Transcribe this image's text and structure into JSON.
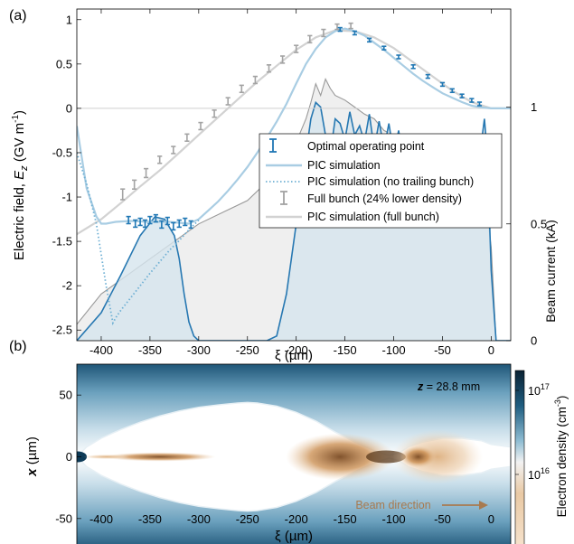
{
  "chart_data": [
    {
      "panel_label": "(a)",
      "type": "line",
      "xlabel": "ξ (µm)",
      "ylabel": "Electric field, E_z (GV m^-1)",
      "ylabel_parts": {
        "pre": "Electric field, ",
        "sym": "E",
        "sub": "z",
        "mid": " (GV m",
        "sup": "-1",
        "post": ")"
      },
      "y2label": "Beam current (kA)",
      "xlim": [
        -425,
        20
      ],
      "ylim": [
        -2.62,
        1.12
      ],
      "y2lim": [
        0,
        1.42
      ],
      "xticks": [
        -400,
        -350,
        -300,
        -250,
        -200,
        -150,
        -100,
        -50,
        0
      ],
      "xtick_labels": [
        "-400",
        "-350",
        "-300",
        "-250",
        "-200",
        "-150",
        "-100",
        "-50",
        "0"
      ],
      "yticks": [
        -2.5,
        -2,
        -1.5,
        -1,
        -0.5,
        0,
        0.5,
        1
      ],
      "ytick_labels": [
        "-2.5",
        "-2",
        "-1.5",
        "-1",
        "-0.5",
        "0",
        "0.5",
        "1"
      ],
      "y2ticks": [
        0,
        0.5,
        1
      ],
      "y2tick_labels": [
        "0",
        "0.5",
        "1"
      ],
      "legend_position": "center-right",
      "colors": {
        "measured": "#1f77b4",
        "pic": "#a9cde3",
        "gray": "#a3a3a3",
        "full_line": "#d2d2d2",
        "current_fill": "#d6e5ee",
        "current_line": "#2778b2",
        "full_current_fill": "#ececec",
        "full_current_line": "#999999"
      },
      "series": [
        {
          "name": "Optimal operating point",
          "style": "errorbar",
          "x": [
            -372,
            -365,
            -360,
            -355,
            -350,
            -344,
            -338,
            -332,
            -326,
            -320,
            -314,
            -308,
            -155,
            -140,
            -125,
            -110,
            -95,
            -80,
            -65,
            -50,
            -40,
            -30,
            -20,
            -12
          ],
          "y": [
            -1.26,
            -1.3,
            -1.28,
            -1.3,
            -1.26,
            -1.24,
            -1.31,
            -1.27,
            -1.33,
            -1.3,
            -1.28,
            -1.31,
            0.89,
            0.85,
            0.77,
            0.68,
            0.58,
            0.47,
            0.36,
            0.27,
            0.2,
            0.14,
            0.09,
            0.05
          ],
          "err": [
            0.04,
            0.04,
            0.04,
            0.04,
            0.04,
            0.04,
            0.04,
            0.04,
            0.04,
            0.04,
            0.04,
            0.04,
            0.02,
            0.02,
            0.02,
            0.02,
            0.02,
            0.02,
            0.02,
            0.02,
            0.02,
            0.02,
            0.02,
            0.02
          ]
        },
        {
          "name": "PIC simulation",
          "style": "solid",
          "x": [
            -425,
            -415,
            -405,
            -400,
            -395,
            -385,
            -370,
            -350,
            -330,
            -310,
            -300,
            -290,
            -280,
            -270,
            -260,
            -250,
            -240,
            -230,
            -220,
            -210,
            -200,
            -190,
            -180,
            -170,
            -160,
            -150,
            -140,
            -130,
            -120,
            -110,
            -100,
            -90,
            -80,
            -70,
            -60,
            -50,
            -40,
            -30,
            -20,
            -10,
            0,
            20
          ],
          "y": [
            -0.2,
            -0.9,
            -1.22,
            -1.3,
            -1.3,
            -1.28,
            -1.27,
            -1.28,
            -1.28,
            -1.3,
            -1.25,
            -1.15,
            -1.05,
            -0.93,
            -0.8,
            -0.66,
            -0.5,
            -0.33,
            -0.15,
            0.05,
            0.28,
            0.5,
            0.67,
            0.8,
            0.87,
            0.9,
            0.87,
            0.82,
            0.74,
            0.66,
            0.57,
            0.48,
            0.39,
            0.31,
            0.24,
            0.17,
            0.12,
            0.07,
            0.03,
            0.01,
            0,
            0
          ]
        },
        {
          "name": "PIC simulation (no trailing bunch)",
          "style": "dotted",
          "x": [
            -425,
            -415,
            -405,
            -395,
            -388,
            -385,
            -380,
            -370,
            -360,
            -350,
            -340,
            -330,
            -320,
            -310,
            -300
          ],
          "y": [
            -0.5,
            -0.85,
            -1.3,
            -2.0,
            -2.42,
            -2.36,
            -2.28,
            -2.14,
            -2.0,
            -1.86,
            -1.73,
            -1.6,
            -1.49,
            -1.37,
            -1.26
          ]
        },
        {
          "name": "Full bunch (24% lower density)",
          "style": "errorbar",
          "x": [
            -378,
            -366,
            -354,
            -340,
            -326,
            -312,
            -298,
            -284,
            -270,
            -256,
            -242,
            -228,
            -214,
            -200,
            -186,
            -172,
            -158,
            -144
          ],
          "y": [
            -0.97,
            -0.86,
            -0.73,
            -0.58,
            -0.47,
            -0.33,
            -0.2,
            -0.06,
            0.08,
            0.22,
            0.32,
            0.45,
            0.55,
            0.67,
            0.78,
            0.85,
            0.92,
            0.93
          ],
          "err": [
            0.06,
            0.05,
            0.05,
            0.04,
            0.04,
            0.04,
            0.04,
            0.04,
            0.04,
            0.04,
            0.04,
            0.04,
            0.04,
            0.04,
            0.04,
            0.04,
            0.03,
            0.03
          ]
        },
        {
          "name": "PIC simulation (full bunch)",
          "style": "solid",
          "x": [
            -425,
            -400,
            -380,
            -360,
            -340,
            -320,
            -300,
            -280,
            -260,
            -240,
            -220,
            -200,
            -180,
            -160,
            -140,
            -120,
            -100,
            -80,
            -60,
            -40,
            -20,
            0,
            20
          ],
          "y": [
            -1.42,
            -1.25,
            -1.07,
            -0.88,
            -0.7,
            -0.5,
            -0.3,
            -0.1,
            0.1,
            0.3,
            0.48,
            0.66,
            0.8,
            0.88,
            0.87,
            0.8,
            0.68,
            0.52,
            0.36,
            0.2,
            0.07,
            0,
            0
          ]
        }
      ],
      "beam_current": [
        {
          "style": "filled",
          "x": [
            -425,
            -400,
            -380,
            -360,
            -345,
            -335,
            -325,
            -320,
            -315,
            -310,
            -305,
            -300,
            -250,
            -230,
            -220,
            -210,
            -200,
            -195,
            -190,
            -185,
            -180,
            -175,
            -170,
            -165,
            -160,
            -155,
            -150,
            -145,
            -140,
            -135,
            -130,
            -125,
            -120,
            -115,
            -110,
            -105,
            -100,
            -95,
            -90,
            -85,
            -80,
            -75,
            -70,
            -65,
            -60,
            -55,
            -50,
            -45,
            -40,
            -35,
            -30,
            -25,
            -20,
            -15,
            -10,
            -7,
            -4,
            0,
            5,
            20
          ],
          "y": [
            0,
            0.12,
            0.28,
            0.45,
            0.53,
            0.52,
            0.45,
            0.35,
            0.2,
            0.08,
            0.02,
            0,
            0,
            0,
            0.02,
            0.2,
            0.5,
            0.62,
            0.8,
            0.95,
            1.02,
            1.0,
            0.88,
            0.8,
            0.95,
            0.93,
            0.86,
            0.98,
            0.88,
            0.92,
            0.85,
            0.97,
            0.82,
            0.94,
            0.82,
            0.93,
            0.8,
            0.9,
            0.76,
            0.83,
            0.72,
            0.8,
            0.68,
            0.75,
            0.7,
            0.68,
            0.65,
            0.64,
            0.62,
            0.62,
            0.6,
            0.6,
            0.55,
            0.6,
            0.85,
            0.95,
            0.8,
            0.3,
            0,
            0
          ]
        },
        {
          "style": "filled",
          "x": [
            -425,
            -400,
            -350,
            -300,
            -250,
            -220,
            -200,
            -190,
            -185,
            -180,
            -175,
            -170,
            -165,
            -160,
            -150,
            -140,
            -130,
            -120,
            -110,
            -100,
            -80,
            -60,
            -40,
            -20,
            -10,
            0,
            5,
            20
          ],
          "y": [
            0.07,
            0.2,
            0.35,
            0.5,
            0.6,
            0.72,
            0.85,
            0.95,
            1.02,
            1.1,
            1.05,
            1.12,
            1.08,
            1.05,
            1.03,
            1.0,
            0.97,
            0.95,
            0.9,
            0.88,
            0.82,
            0.78,
            0.74,
            0.7,
            0.75,
            0.4,
            0,
            0
          ]
        }
      ],
      "legend": [
        "Optimal operating point",
        "PIC simulation",
        "PIC simulation (no trailing bunch)",
        "Full bunch (24% lower density)",
        "PIC simulation (full bunch)"
      ]
    },
    {
      "panel_label": "(b)",
      "type": "heatmap",
      "xlabel": "ξ (µm)",
      "ylabel": "x (µm)",
      "xlim": [
        -425,
        20
      ],
      "ylim": [
        -75,
        75
      ],
      "xticks": [
        -400,
        -350,
        -300,
        -250,
        -200,
        -150,
        -100,
        -50,
        0
      ],
      "xtick_labels": [
        "-400",
        "-350",
        "-300",
        "-250",
        "-200",
        "-150",
        "-100",
        "-50",
        "0"
      ],
      "yticks": [
        -50,
        0,
        50
      ],
      "ytick_labels": [
        "-50",
        "0",
        "50"
      ],
      "annotation_z_label": "z",
      "annotation_z_value": " = 28.8 mm",
      "annotation_direction": "Beam direction",
      "colorbar_label": "Electron density (cm^-3)",
      "colorbar_label_parts": {
        "pre": "Electron density (cm",
        "sup": "-3",
        "post": ")"
      },
      "colorbar_ticks": [
        {
          "base": "10",
          "exp": "17",
          "value": 1e+17
        },
        {
          "base": "10",
          "exp": "16",
          "value": 1e+16
        }
      ],
      "colorbar_scale": "log",
      "colors": {
        "plasma_dark": "#0d3a57",
        "plasma_light": "#d4e6ef",
        "beam": "#c98a4a",
        "arrow": "#a87a4f"
      },
      "blowout_boundary": {
        "x": [
          -425,
          -415,
          -400,
          -380,
          -360,
          -340,
          -320,
          -300,
          -280,
          -260,
          -250,
          -240,
          -220,
          -200,
          -180,
          -160,
          -140,
          -120,
          -105,
          -95,
          -85,
          -70,
          -50,
          -30,
          -10,
          0,
          20
        ],
        "half_width": [
          0,
          8,
          15,
          22,
          28,
          33,
          37,
          40,
          42,
          43.5,
          44,
          43.5,
          41,
          36,
          29,
          20,
          12,
          5,
          1,
          3,
          8,
          12,
          15,
          15,
          13,
          10,
          8
        ]
      }
    }
  ]
}
